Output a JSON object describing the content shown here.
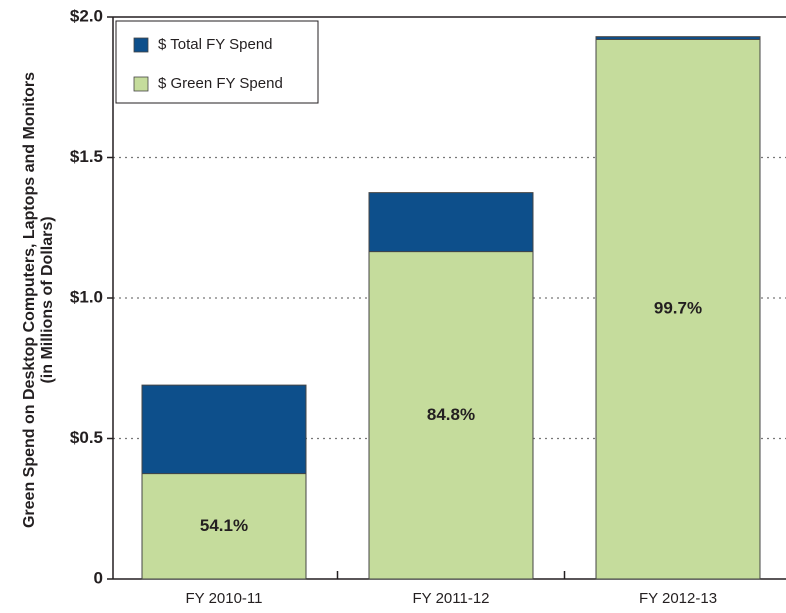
{
  "chart_data": {
    "type": "overlap_bar",
    "y_axis_label": [
      "Green Spend on Desktop Computers, Laptops and Monitors",
      "(in Millions of Dollars)"
    ],
    "categories": [
      "FY 2010-11",
      "FY 2011-12",
      "FY 2012-13"
    ],
    "series": [
      {
        "name": "$ Total FY Spend",
        "color": "#0d4f8b",
        "values": [
          0.69,
          1.375,
          1.93
        ]
      },
      {
        "name": "$ Green FY Spend",
        "color": "#c5dc9c",
        "values": [
          0.375,
          1.165,
          1.92
        ],
        "value_labels": [
          "54.1%",
          "84.8%",
          "99.7%"
        ]
      }
    ],
    "ylim": [
      0,
      2
    ],
    "yticks": [
      0,
      {
        "value": 0.5,
        "label": "$0.5"
      },
      {
        "value": 1,
        "label": "$1.0"
      },
      {
        "value": 1.5,
        "label": "$1.5"
      },
      {
        "value": 2,
        "label": "$2.0"
      }
    ],
    "grid": true,
    "legend": "top-left"
  }
}
